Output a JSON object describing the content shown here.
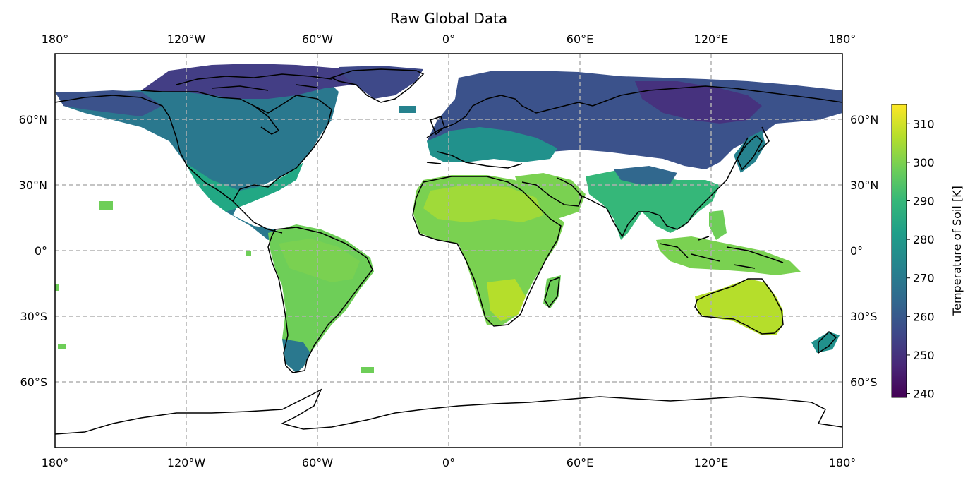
{
  "chart_data": {
    "type": "heatmap",
    "title": "Raw Global Data",
    "projection": "PlateCarree",
    "lon_range": [
      -180,
      180
    ],
    "lat_range": [
      -90,
      90
    ],
    "grid": true,
    "lon_ticks": [
      {
        "value": -180,
        "label": "180°"
      },
      {
        "value": -120,
        "label": "120°W"
      },
      {
        "value": -60,
        "label": "60°W"
      },
      {
        "value": 0,
        "label": "0°"
      },
      {
        "value": 60,
        "label": "60°E"
      },
      {
        "value": 120,
        "label": "120°E"
      },
      {
        "value": 180,
        "label": "180°"
      }
    ],
    "lat_ticks": [
      {
        "value": 60,
        "label": "60°N"
      },
      {
        "value": 30,
        "label": "30°N"
      },
      {
        "value": 0,
        "label": "0°"
      },
      {
        "value": -30,
        "label": "30°S"
      },
      {
        "value": -60,
        "label": "60°S"
      }
    ],
    "colorbar": {
      "label": "Temperature of Soil [K]",
      "colormap": "viridis",
      "range": [
        239,
        315
      ],
      "ticks": [
        240,
        250,
        260,
        270,
        280,
        290,
        300,
        310
      ]
    },
    "colors": {
      "viridis": [
        "#440154",
        "#482878",
        "#3e4989",
        "#31688e",
        "#26828e",
        "#1f9e89",
        "#35b779",
        "#6ece58",
        "#b5de2b",
        "#fde725"
      ],
      "coastline": "#000000",
      "gridline": "#b0b0b0"
    }
  }
}
